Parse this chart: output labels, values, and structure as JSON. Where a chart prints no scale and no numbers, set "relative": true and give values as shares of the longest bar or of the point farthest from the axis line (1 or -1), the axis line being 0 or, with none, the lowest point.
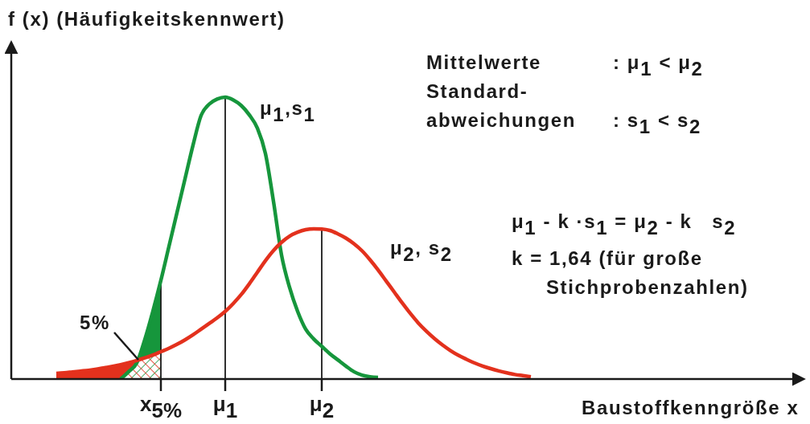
{
  "chart_data": {
    "type": "line",
    "ylabel": "f (x) (Häufigkeitskennwert)",
    "xlabel": "Baustoffkenngröße x",
    "relative": true,
    "marker": "none",
    "line_style": "solid",
    "tick_labels": "x",
    "categories": [
      null,
      null,
      null,
      null,
      null,
      null,
      null,
      null,
      null,
      null,
      null,
      null,
      null,
      "x$_{5%}$",
      null,
      null,
      null,
      null,
      null,
      null,
      null,
      "μ$_{1}$",
      null,
      null,
      null,
      null,
      null,
      null,
      null,
      null,
      null,
      null,
      null,
      "μ$_{2}$",
      null,
      null,
      null,
      null,
      null,
      null,
      null,
      null,
      null,
      null,
      null,
      null,
      null,
      null,
      null,
      null,
      null,
      null,
      null,
      null,
      null,
      null,
      null,
      null,
      null,
      null,
      null
    ],
    "series": [
      {
        "name": "μ$_{1}$,s$_{1}$",
        "color": "#16963c",
        "values": [
          null,
          null,
          null,
          null,
          null,
          null,
          null,
          null,
          0,
          0.026,
          0.057,
          0.14,
          0.24,
          0.35,
          0.47,
          0.59,
          0.71,
          0.83,
          0.935,
          0.975,
          0.993,
          1,
          0.99,
          0.97,
          0.937,
          0.89,
          0.8,
          0.63,
          0.44,
          0.325,
          0.24,
          0.177,
          0.142,
          0.116,
          0.09,
          0.068,
          0.046,
          0.026,
          0.014,
          0.008,
          0.006,
          null,
          null,
          null,
          null,
          null,
          null,
          null,
          null,
          null,
          null,
          null,
          null,
          null,
          null,
          null,
          null,
          null,
          null,
          null,
          null
        ]
      },
      {
        "name": "μ$_{2}$, s$_{2}$",
        "color": "#e3311d",
        "values": [
          0.02,
          0.022,
          0.025,
          0.028,
          0.031,
          0.035,
          0.04,
          0.045,
          0.051,
          0.058,
          0.066,
          0.075,
          0.085,
          0.097,
          0.109,
          0.123,
          0.139,
          0.157,
          0.177,
          0.197,
          0.217,
          0.24,
          0.268,
          0.3,
          0.338,
          0.379,
          0.42,
          0.456,
          0.485,
          0.507,
          0.521,
          0.53,
          0.533,
          0.532,
          0.527,
          0.515,
          0.5,
          0.48,
          0.455,
          0.423,
          0.387,
          0.348,
          0.309,
          0.27,
          0.233,
          0.199,
          0.17,
          0.144,
          0.121,
          0.101,
          0.084,
          0.07,
          0.057,
          0.046,
          0.037,
          0.029,
          0.022,
          0.016,
          0.012,
          0.008,
          null
        ]
      },
      {
        "type": "area",
        "color": "#e3311d",
        "values": [
          0.02,
          0.022,
          0.025,
          0.028,
          0.031,
          0.035,
          0.04,
          0.045,
          0.051,
          0.058,
          0.066,
          null,
          null,
          null,
          null,
          null,
          null,
          null,
          null,
          null,
          null,
          null,
          null,
          null,
          null,
          null,
          null,
          null,
          null,
          null,
          null,
          null,
          null,
          null,
          null,
          null,
          null,
          null,
          null,
          null,
          null,
          null,
          null,
          null,
          null,
          null,
          null,
          null,
          null,
          null,
          null,
          null,
          null,
          null,
          null,
          null,
          null,
          null,
          null,
          null,
          null
        ]
      },
      {
        "type": "area",
        "color": "#16963c",
        "values": [
          null,
          null,
          null,
          null,
          null,
          null,
          null,
          null,
          0,
          0.026,
          0.057,
          0.14,
          0.24,
          0.35,
          null,
          null,
          null,
          null,
          null,
          null,
          null,
          null,
          null,
          null,
          null,
          null,
          null,
          null,
          null,
          null,
          null,
          null,
          null,
          null,
          null,
          null,
          null,
          null,
          null,
          null,
          null,
          null,
          null,
          null,
          null,
          null,
          null,
          null,
          null,
          null,
          null,
          null,
          null,
          null,
          null,
          null,
          null,
          null,
          null,
          null,
          null
        ]
      },
      {
        "type": "area",
        "color": "#ffffff",
        "values": [
          null,
          null,
          null,
          null,
          null,
          null,
          null,
          null,
          0,
          0.026,
          0.057,
          0.075,
          0.085,
          0.097,
          null,
          null,
          null,
          null,
          null,
          null,
          null,
          null,
          null,
          null,
          null,
          null,
          null,
          null,
          null,
          null,
          null,
          null,
          null,
          null,
          null,
          null,
          null,
          null,
          null,
          null,
          null,
          null,
          null,
          null,
          null,
          null,
          null,
          null,
          null,
          null,
          null,
          null,
          null,
          null,
          null,
          null,
          null,
          null,
          null,
          null,
          null
        ]
      }
    ],
    "ref_lines": [
      {
        "axis": "x",
        "value": "x$_{5%}$",
        "color": "#1a1a1a"
      },
      {
        "axis": "x",
        "value": "μ$_{1}$",
        "color": "#1a1a1a"
      },
      {
        "axis": "x",
        "value": "μ$_{2}$",
        "color": "#1a1a1a"
      }
    ],
    "annotations": [
      "Mittelwerte",
      ": μ$_{1}$ < μ$_{2}$",
      "Standard-\nabweichungen",
      ": s$_{1}$ < s$_{2}$",
      "μ$_{1}$ - k ·s$_{1}$ = μ$_{2}$ - k   s$_{2}$",
      "k = 1,64 (für große\nStichprobenzahlen)",
      "5%"
    ]
  }
}
